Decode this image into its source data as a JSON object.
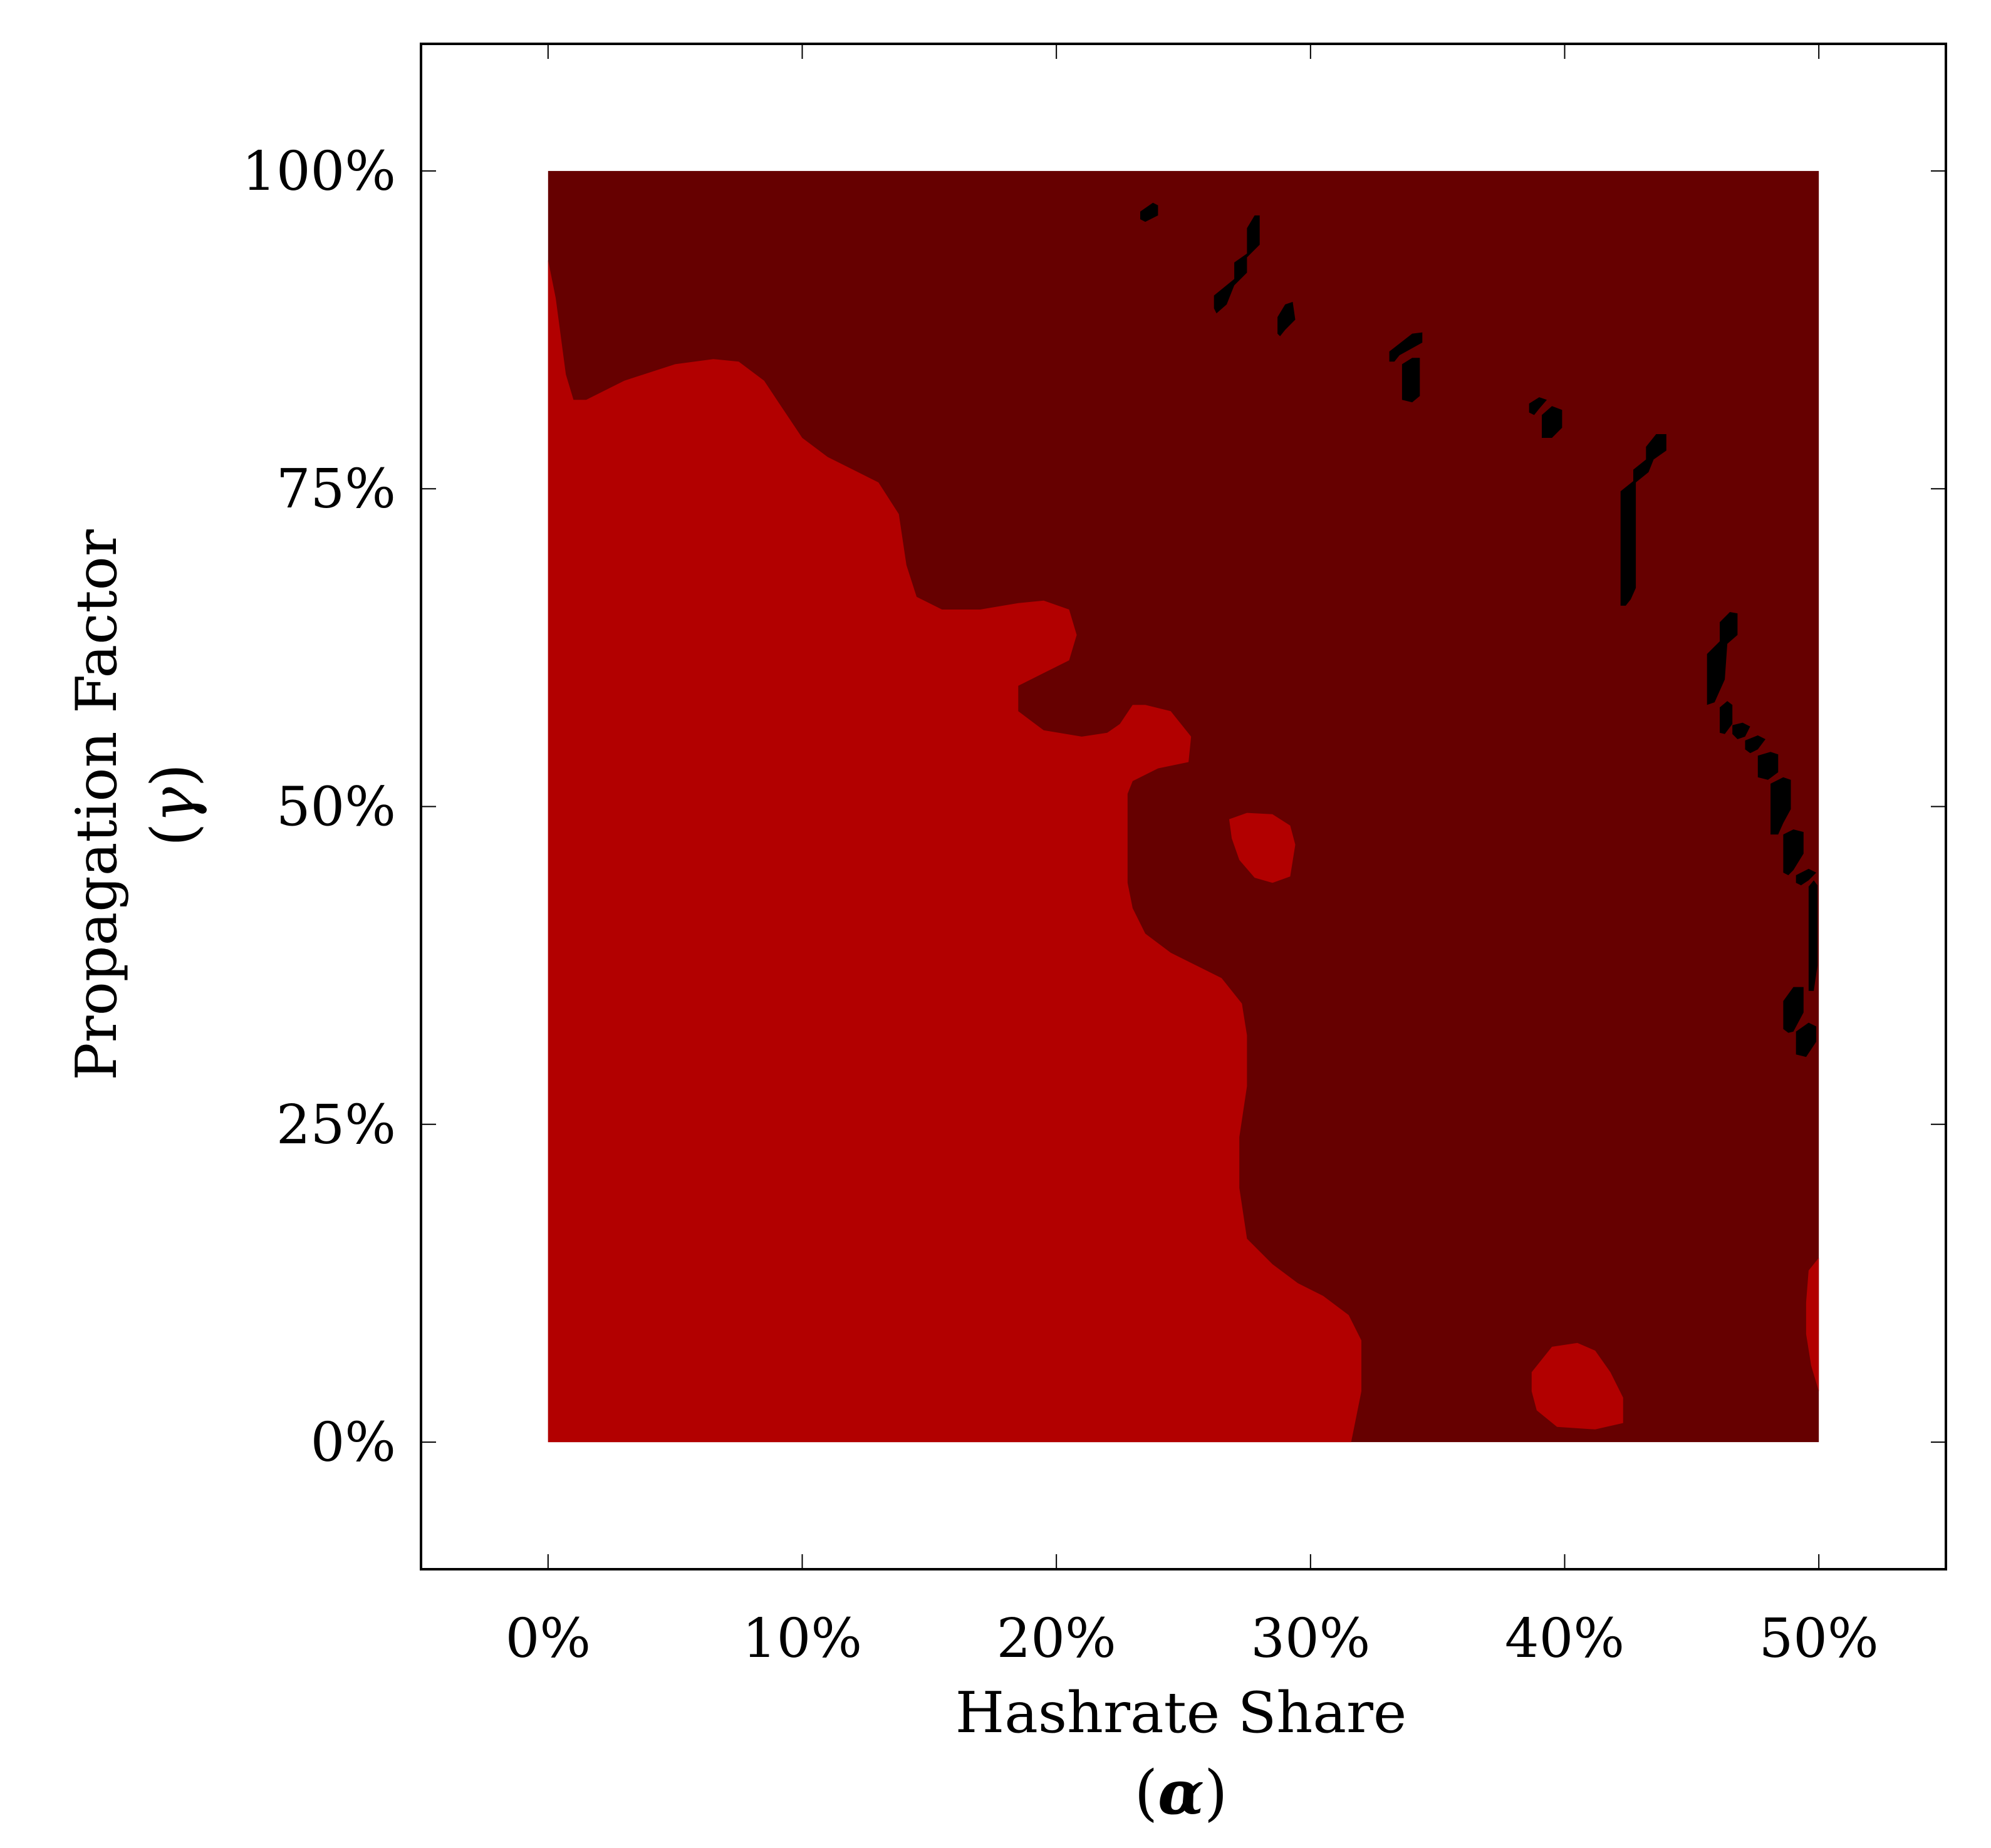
{
  "chart_data": {
    "type": "heatmap",
    "xlabel": "Hashrate Share",
    "xsymbol": "α",
    "ylabel": "Propagation Factor",
    "ysymbol": "γ",
    "xlim": [
      -5,
      55
    ],
    "ylim": [
      -10,
      110
    ],
    "x_ticks": [
      0,
      10,
      20,
      30,
      40,
      50
    ],
    "x_tick_labels": [
      "0%",
      "10%",
      "20%",
      "30%",
      "40%",
      "50%"
    ],
    "y_ticks": [
      0,
      25,
      50,
      75,
      100
    ],
    "y_tick_labels": [
      "0%",
      "25%",
      "50%",
      "75%",
      "100%"
    ],
    "grid": false,
    "colors": {
      "background_region": "#660000",
      "red_region": "#b20000",
      "black_region": "#000000",
      "frame": "#000000"
    },
    "regions": [
      {
        "color": "#b20000",
        "polygon": [
          [
            0,
            93
          ],
          [
            0.3,
            90
          ],
          [
            0.7,
            84
          ],
          [
            1,
            82
          ],
          [
            1.5,
            82
          ],
          [
            3,
            83.5
          ],
          [
            5,
            84.8
          ],
          [
            6.5,
            85.2
          ],
          [
            7.5,
            85
          ],
          [
            8.5,
            83.5
          ],
          [
            9,
            82
          ],
          [
            10,
            79
          ],
          [
            11,
            77.5
          ],
          [
            12,
            76.5
          ],
          [
            13,
            75.5
          ],
          [
            13.8,
            73
          ],
          [
            14.1,
            69
          ],
          [
            14.5,
            66.5
          ],
          [
            15.5,
            65.5
          ],
          [
            17,
            65.5
          ],
          [
            18.5,
            66
          ],
          [
            19.5,
            66.2
          ],
          [
            20.5,
            65.5
          ],
          [
            20.8,
            63.5
          ],
          [
            20.5,
            61.5
          ],
          [
            19.5,
            60.5
          ],
          [
            18.5,
            59.5
          ],
          [
            18.5,
            57.5
          ],
          [
            19.5,
            56
          ],
          [
            21,
            55.5
          ],
          [
            22,
            55.8
          ],
          [
            22.5,
            56.5
          ],
          [
            23,
            58
          ],
          [
            23.5,
            58
          ],
          [
            24.5,
            57.5
          ],
          [
            25.3,
            55.5
          ],
          [
            25.2,
            53.5
          ],
          [
            24,
            53
          ],
          [
            23,
            52
          ],
          [
            22.8,
            51
          ],
          [
            22.8,
            48
          ],
          [
            22.8,
            44
          ],
          [
            23,
            42
          ],
          [
            23.5,
            40
          ],
          [
            24.5,
            38.5
          ],
          [
            25.5,
            37.5
          ],
          [
            26.5,
            36.5
          ],
          [
            27.3,
            34.5
          ],
          [
            27.5,
            32
          ],
          [
            27.5,
            28
          ],
          [
            27.2,
            24
          ],
          [
            27.2,
            20
          ],
          [
            27.5,
            16
          ],
          [
            28.5,
            14
          ],
          [
            29.5,
            12.5
          ],
          [
            30.5,
            11.5
          ],
          [
            31.5,
            10
          ],
          [
            32,
            8
          ],
          [
            32,
            4
          ],
          [
            31.6,
            0
          ],
          [
            0,
            0
          ]
        ]
      },
      {
        "color": "#b20000",
        "polygon": [
          [
            26.8,
            49
          ],
          [
            27.5,
            49.5
          ],
          [
            28.5,
            49.4
          ],
          [
            29.2,
            48.5
          ],
          [
            29.4,
            47
          ],
          [
            29.2,
            44.5
          ],
          [
            28.5,
            44
          ],
          [
            27.8,
            44.4
          ],
          [
            27.2,
            45.8
          ],
          [
            26.9,
            47.5
          ]
        ]
      },
      {
        "color": "#b20000",
        "polygon": [
          [
            38.7,
            5.5
          ],
          [
            39.5,
            7.5
          ],
          [
            40.5,
            7.8
          ],
          [
            41.2,
            7.2
          ],
          [
            41.8,
            5.5
          ],
          [
            42.3,
            3.5
          ],
          [
            42.3,
            1.5
          ],
          [
            41.2,
            1
          ],
          [
            39.7,
            1.2
          ],
          [
            38.9,
            2.5
          ],
          [
            38.7,
            4
          ]
        ]
      },
      {
        "color": "#b20000",
        "polygon": [
          [
            50,
            14.5
          ],
          [
            49.6,
            13.5
          ],
          [
            49.5,
            11
          ],
          [
            49.5,
            8.5
          ],
          [
            49.7,
            6
          ],
          [
            50,
            4
          ]
        ]
      },
      {
        "color": "#000000",
        "polygon": [
          [
            23.3,
            96.8
          ],
          [
            23.8,
            97.5
          ],
          [
            24,
            97.3
          ],
          [
            24,
            96.5
          ],
          [
            23.5,
            96
          ],
          [
            23.3,
            96.2
          ]
        ]
      },
      {
        "color": "#000000",
        "polygon": [
          [
            26.2,
            89.2
          ],
          [
            26.2,
            90.2
          ],
          [
            27,
            91.5
          ],
          [
            27,
            92.8
          ],
          [
            27.5,
            93.5
          ],
          [
            27.5,
            95.5
          ],
          [
            27.8,
            96.5
          ],
          [
            28,
            96.5
          ],
          [
            28,
            94.2
          ],
          [
            27.5,
            93.2
          ],
          [
            27.5,
            92
          ],
          [
            27,
            91
          ],
          [
            26.7,
            89.5
          ],
          [
            26.3,
            88.8
          ]
        ]
      },
      {
        "color": "#000000",
        "polygon": [
          [
            28.7,
            87.2
          ],
          [
            28.7,
            88.5
          ],
          [
            29,
            89.5
          ],
          [
            29.3,
            89.7
          ],
          [
            29.4,
            88.3
          ],
          [
            29,
            87.5
          ],
          [
            28.8,
            87
          ]
        ]
      },
      {
        "color": "#000000",
        "polygon": [
          [
            33.1,
            85
          ],
          [
            33.1,
            85.8
          ],
          [
            34,
            87.2
          ],
          [
            34.4,
            87.3
          ],
          [
            34.4,
            86.5
          ],
          [
            33.5,
            85.5
          ],
          [
            33.3,
            85
          ]
        ]
      },
      {
        "color": "#000000",
        "polygon": [
          [
            33.6,
            82
          ],
          [
            33.6,
            84.8
          ],
          [
            34,
            85.3
          ],
          [
            34.3,
            85.3
          ],
          [
            34.3,
            82.3
          ],
          [
            34,
            81.8
          ]
        ]
      },
      {
        "color": "#000000",
        "polygon": [
          [
            38.6,
            81
          ],
          [
            38.6,
            81.7
          ],
          [
            39,
            82.2
          ],
          [
            39.3,
            82
          ],
          [
            39,
            81.3
          ],
          [
            38.8,
            80.8
          ]
        ]
      },
      {
        "color": "#000000",
        "polygon": [
          [
            39.1,
            79
          ],
          [
            39.1,
            80.8
          ],
          [
            39.5,
            81.5
          ],
          [
            39.9,
            81.2
          ],
          [
            39.9,
            79.8
          ],
          [
            39.5,
            79
          ]
        ]
      },
      {
        "color": "#000000",
        "polygon": [
          [
            42.2,
            65.8
          ],
          [
            42.2,
            74.8
          ],
          [
            42.7,
            75.6
          ],
          [
            42.7,
            76.5
          ],
          [
            43.2,
            77.3
          ],
          [
            43.2,
            78.3
          ],
          [
            43.6,
            79.3
          ],
          [
            44,
            79.3
          ],
          [
            44,
            78
          ],
          [
            43.5,
            77.3
          ],
          [
            43.3,
            76.3
          ],
          [
            42.8,
            75.5
          ],
          [
            42.8,
            67.2
          ],
          [
            42.6,
            66.3
          ],
          [
            42.4,
            65.8
          ]
        ]
      },
      {
        "color": "#000000",
        "polygon": [
          [
            45.6,
            58
          ],
          [
            45.6,
            62
          ],
          [
            46.1,
            63
          ],
          [
            46.1,
            64.5
          ],
          [
            46.5,
            65.3
          ],
          [
            46.8,
            65.2
          ],
          [
            46.8,
            63.5
          ],
          [
            46.4,
            62.8
          ],
          [
            46.3,
            60
          ],
          [
            45.9,
            58.2
          ]
        ]
      },
      {
        "color": "#000000",
        "polygon": [
          [
            46.1,
            55.8
          ],
          [
            46.1,
            57.8
          ],
          [
            46.4,
            58.3
          ],
          [
            46.6,
            58
          ],
          [
            46.6,
            56.5
          ],
          [
            46.3,
            55.7
          ]
        ]
      },
      {
        "color": "#000000",
        "polygon": [
          [
            46.6,
            55.7
          ],
          [
            46.6,
            56.4
          ],
          [
            47,
            56.6
          ],
          [
            47.3,
            56.3
          ],
          [
            47.1,
            55.5
          ],
          [
            46.8,
            55.3
          ]
        ]
      },
      {
        "color": "#000000",
        "polygon": [
          [
            47.1,
            54.5
          ],
          [
            47.1,
            55.2
          ],
          [
            47.6,
            55.6
          ],
          [
            47.9,
            55.3
          ],
          [
            47.6,
            54.5
          ],
          [
            47.3,
            54.2
          ]
        ]
      },
      {
        "color": "#000000",
        "polygon": [
          [
            47.6,
            52.3
          ],
          [
            47.6,
            54
          ],
          [
            48.1,
            54.3
          ],
          [
            48.4,
            54.1
          ],
          [
            48.4,
            52.7
          ],
          [
            48,
            52.1
          ]
        ]
      },
      {
        "color": "#000000",
        "polygon": [
          [
            48.1,
            47.8
          ],
          [
            48.1,
            51.8
          ],
          [
            48.6,
            52.3
          ],
          [
            48.9,
            52.1
          ],
          [
            48.9,
            49.8
          ],
          [
            48.6,
            48.7
          ],
          [
            48.4,
            47.8
          ]
        ]
      },
      {
        "color": "#000000",
        "polygon": [
          [
            48.6,
            44.8
          ],
          [
            48.6,
            47.8
          ],
          [
            49,
            48.2
          ],
          [
            49.4,
            48
          ],
          [
            49.4,
            46.3
          ],
          [
            49,
            45
          ],
          [
            48.8,
            44.6
          ]
        ]
      },
      {
        "color": "#000000",
        "polygon": [
          [
            49.1,
            44
          ],
          [
            49.1,
            44.6
          ],
          [
            49.6,
            45.1
          ],
          [
            49.9,
            44.8
          ],
          [
            49.6,
            44.2
          ],
          [
            49.3,
            43.8
          ]
        ]
      },
      {
        "color": "#000000",
        "polygon": [
          [
            49.6,
            35.5
          ],
          [
            49.6,
            43.7
          ],
          [
            49.8,
            44.2
          ],
          [
            49.95,
            43.8
          ],
          [
            49.95,
            37.5
          ],
          [
            49.8,
            35.5
          ]
        ]
      },
      {
        "color": "#000000",
        "polygon": [
          [
            48.6,
            32.5
          ],
          [
            48.6,
            34.7
          ],
          [
            49,
            35.8
          ],
          [
            49.4,
            35.8
          ],
          [
            49.4,
            33.8
          ],
          [
            49,
            32.3
          ],
          [
            48.8,
            32.2
          ]
        ]
      },
      {
        "color": "#000000",
        "polygon": [
          [
            49.1,
            30.5
          ],
          [
            49.1,
            32.3
          ],
          [
            49.6,
            33
          ],
          [
            49.9,
            32.7
          ],
          [
            49.9,
            31.5
          ],
          [
            49.5,
            30.3
          ]
        ]
      }
    ]
  }
}
